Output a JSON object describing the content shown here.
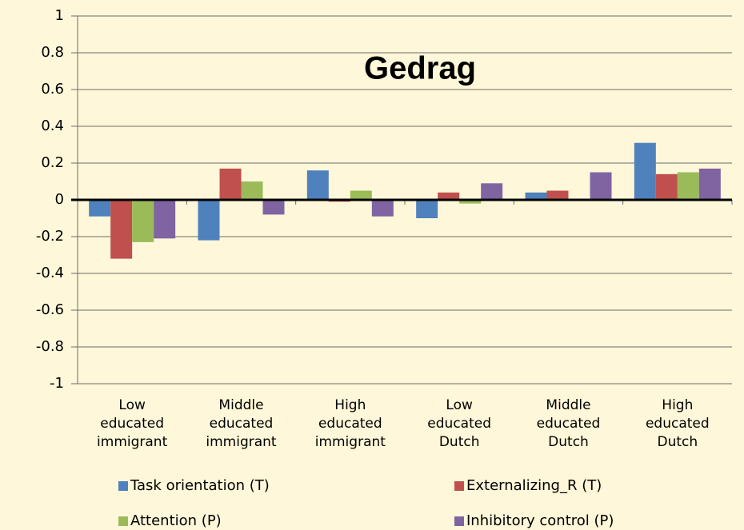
{
  "chart_data": {
    "type": "bar",
    "title": "Gedrag",
    "categories": [
      [
        "Low",
        "educated",
        "immigrant"
      ],
      [
        "Middle",
        "educated",
        "immigrant"
      ],
      [
        "High",
        "educated",
        "immigrant"
      ],
      [
        "Low",
        "educated",
        "Dutch"
      ],
      [
        "Middle",
        "educated",
        "Dutch"
      ],
      [
        "High",
        "educated",
        "Dutch"
      ]
    ],
    "series": [
      {
        "name": "Task orientation (T)",
        "color": "#4f81bd",
        "values": [
          -0.09,
          -0.22,
          0.16,
          -0.1,
          0.04,
          0.31
        ]
      },
      {
        "name": "Externalizing_R (T)",
        "color": "#c0504d",
        "values": [
          -0.32,
          0.17,
          -0.01,
          0.04,
          0.05,
          0.14
        ]
      },
      {
        "name": "Attention (P)",
        "color": "#9bbb59",
        "values": [
          -0.23,
          0.1,
          0.05,
          -0.02,
          0,
          0.15
        ]
      },
      {
        "name": "Inhibitory control (P)",
        "color": "#8064a2",
        "values": [
          -0.21,
          -0.08,
          -0.09,
          0.09,
          0.15,
          0.17
        ]
      }
    ],
    "ylim": [
      -1,
      1
    ],
    "yticks": [
      1,
      0.8,
      0.6,
      0.4,
      0.2,
      0,
      -0.2,
      -0.4,
      -0.6,
      -0.8,
      -1
    ],
    "grid": true
  }
}
